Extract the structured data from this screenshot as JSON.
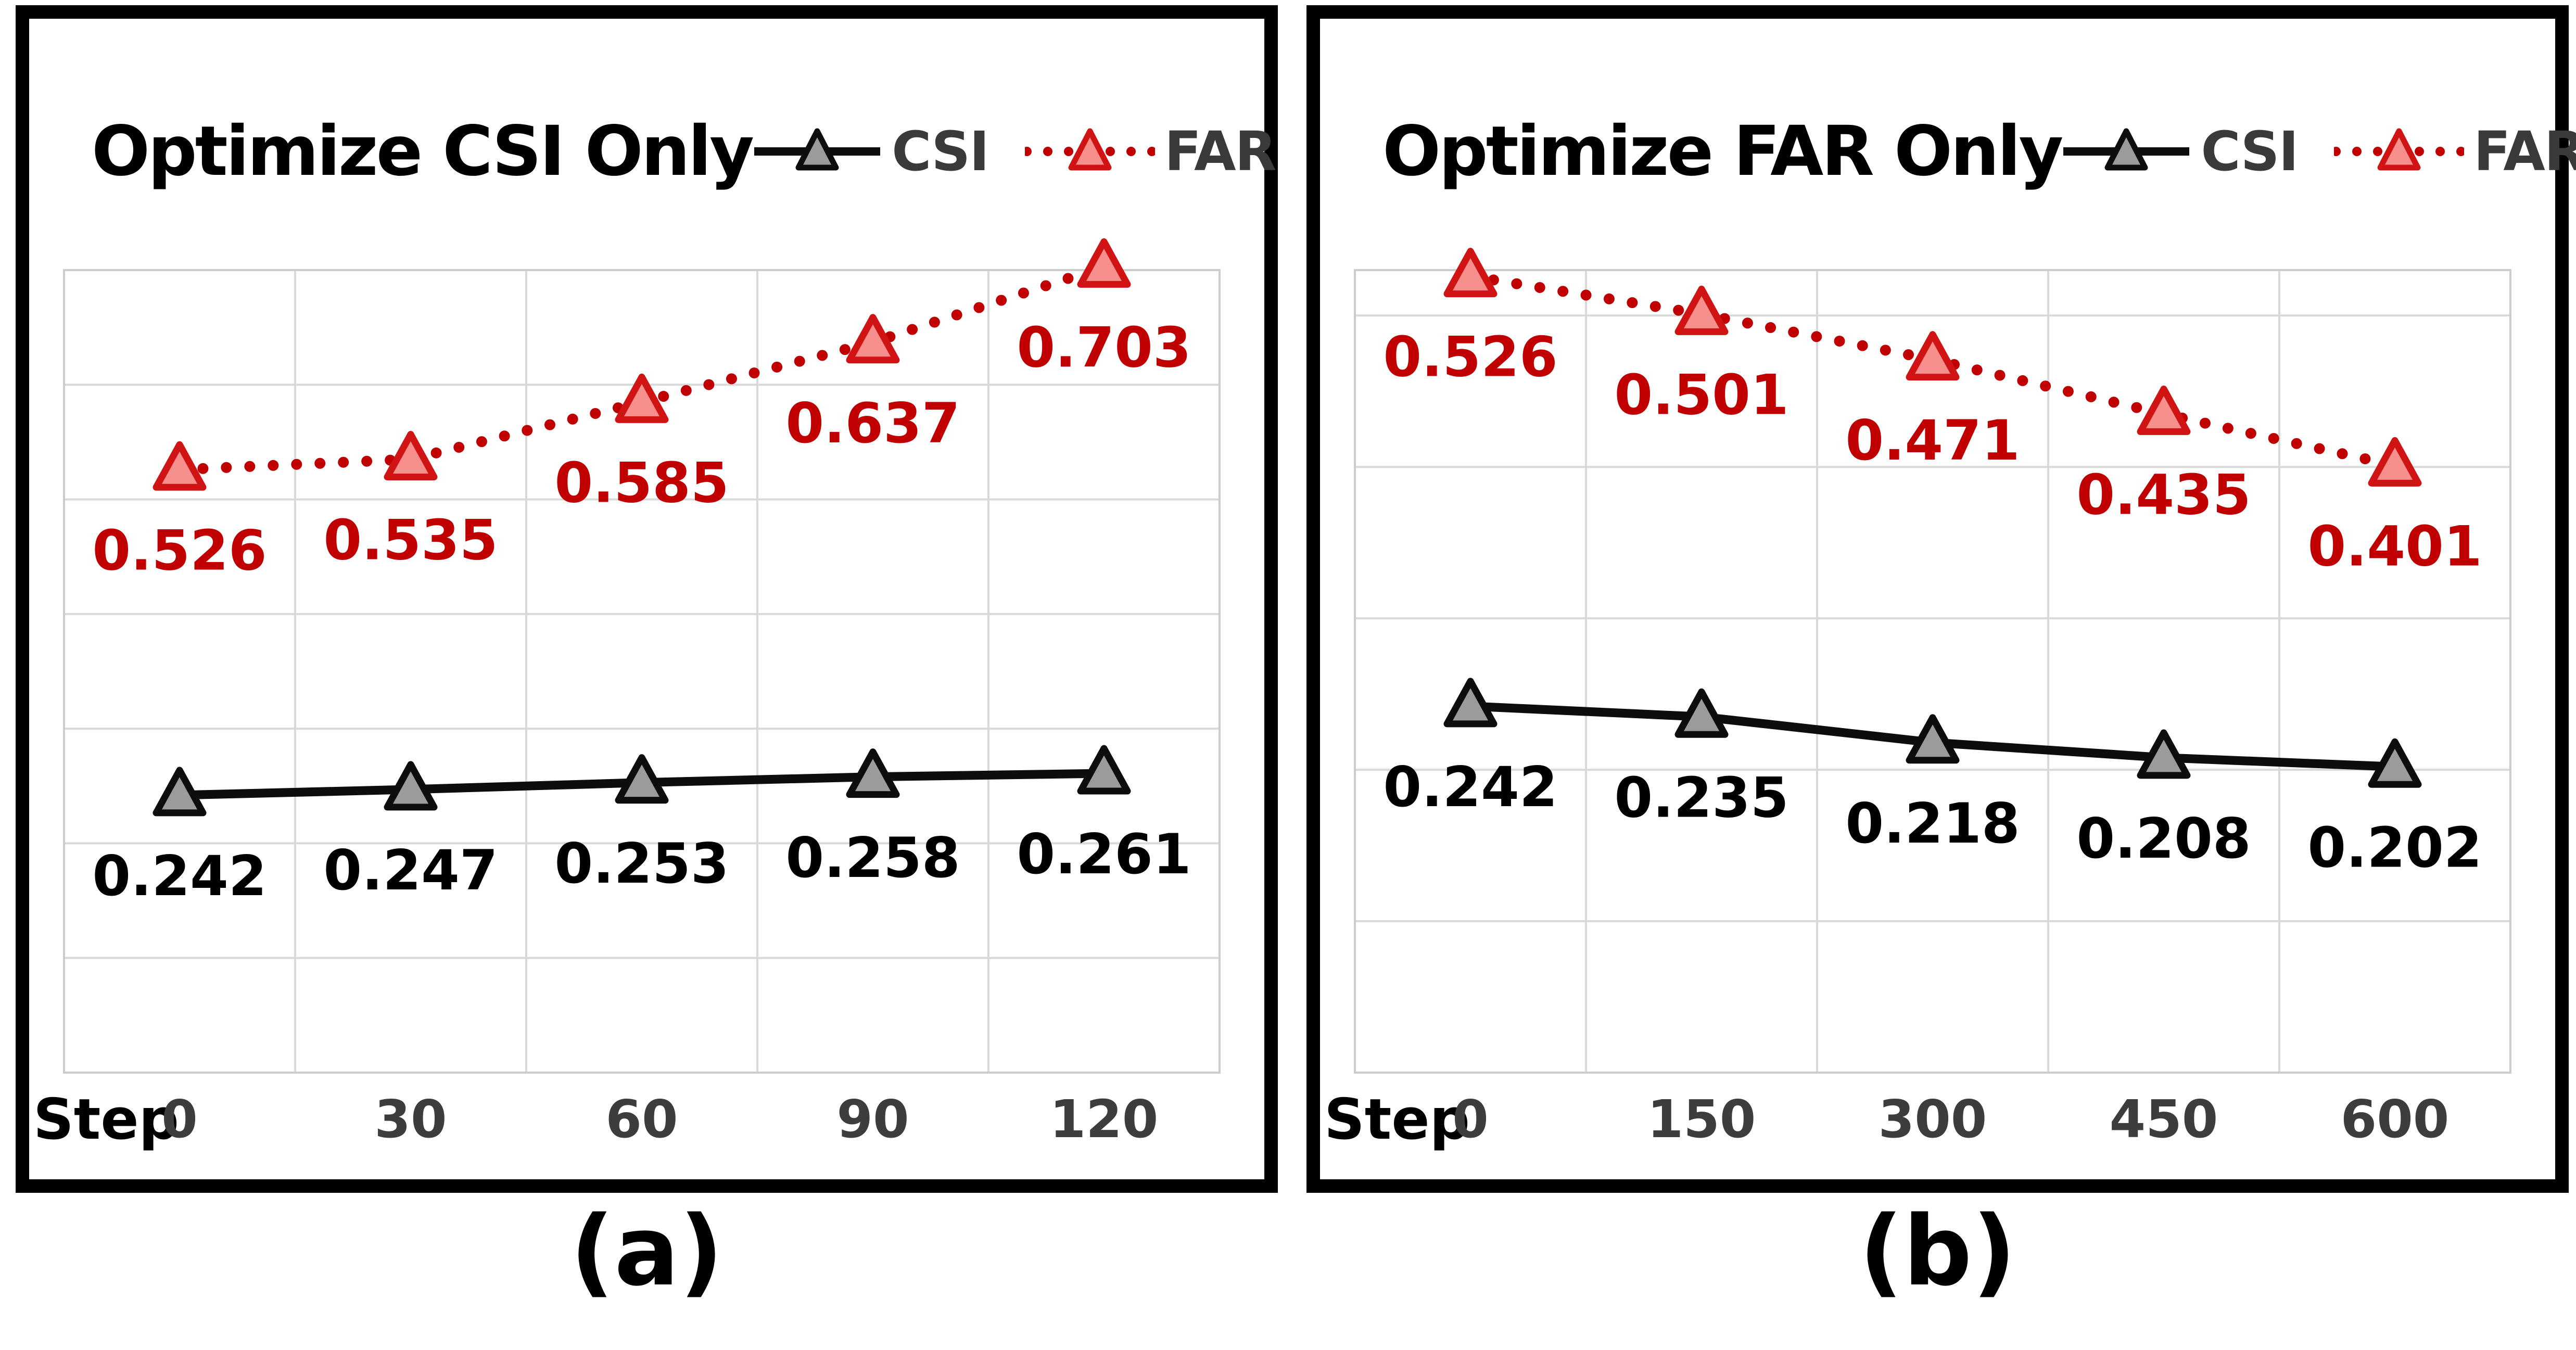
{
  "captions": [
    "(a)",
    "(b)"
  ],
  "x_axis_prefix_label": "Step",
  "style": {
    "far_color": "#c00000",
    "far_marker_fill": "#f7908c",
    "far_marker_stroke": "#d01414",
    "csi_line_color": "#0d0d0d",
    "csi_marker_fill": "#9b9b9b",
    "csi_marker_stroke": "#0d0d0d",
    "csi_label_color": "#000000",
    "grid_color": "#d9d9d9",
    "plot_border_color": "#cccccc",
    "tick_color": "#3d3d3d",
    "step_label_color": "#000000",
    "legend_text_color": "#3a3a3a"
  },
  "chart_data": [
    {
      "type": "line",
      "title": "Optimize CSI Only",
      "xlabel": "Step",
      "ylabel": "",
      "x": [
        0,
        30,
        60,
        90,
        120
      ],
      "x_tick_labels": [
        "0",
        "30",
        "60",
        "90",
        "120"
      ],
      "ylim": [
        0,
        0.7
      ],
      "y_grid_step": 0.1,
      "grid": true,
      "legend_position": "top-right",
      "series": [
        {
          "name": "CSI",
          "line_style": "solid",
          "values": [
            0.242,
            0.247,
            0.253,
            0.258,
            0.261
          ],
          "point_labels": [
            "0.242",
            "0.247",
            "0.253",
            "0.258",
            "0.261"
          ]
        },
        {
          "name": "FAR",
          "line_style": "dotted",
          "values": [
            0.526,
            0.535,
            0.585,
            0.637,
            0.703
          ],
          "point_labels": [
            "0.526",
            "0.535",
            "0.585",
            "0.637",
            "0.703"
          ]
        }
      ]
    },
    {
      "type": "line",
      "title": "Optimize FAR Only",
      "xlabel": "Step",
      "ylabel": "",
      "x": [
        0,
        150,
        300,
        450,
        600
      ],
      "x_tick_labels": [
        "0",
        "150",
        "300",
        "450",
        "600"
      ],
      "ylim": [
        0,
        0.53
      ],
      "y_grid_step": 0.1,
      "grid": true,
      "legend_position": "top-right",
      "series": [
        {
          "name": "CSI",
          "line_style": "solid",
          "values": [
            0.242,
            0.235,
            0.218,
            0.208,
            0.202
          ],
          "point_labels": [
            "0.242",
            "0.235",
            "0.218",
            "0.208",
            "0.202"
          ]
        },
        {
          "name": "FAR",
          "line_style": "dotted",
          "values": [
            0.526,
            0.501,
            0.471,
            0.435,
            0.401
          ],
          "point_labels": [
            "0.526",
            "0.501",
            "0.471",
            "0.435",
            "0.401"
          ]
        }
      ]
    }
  ]
}
